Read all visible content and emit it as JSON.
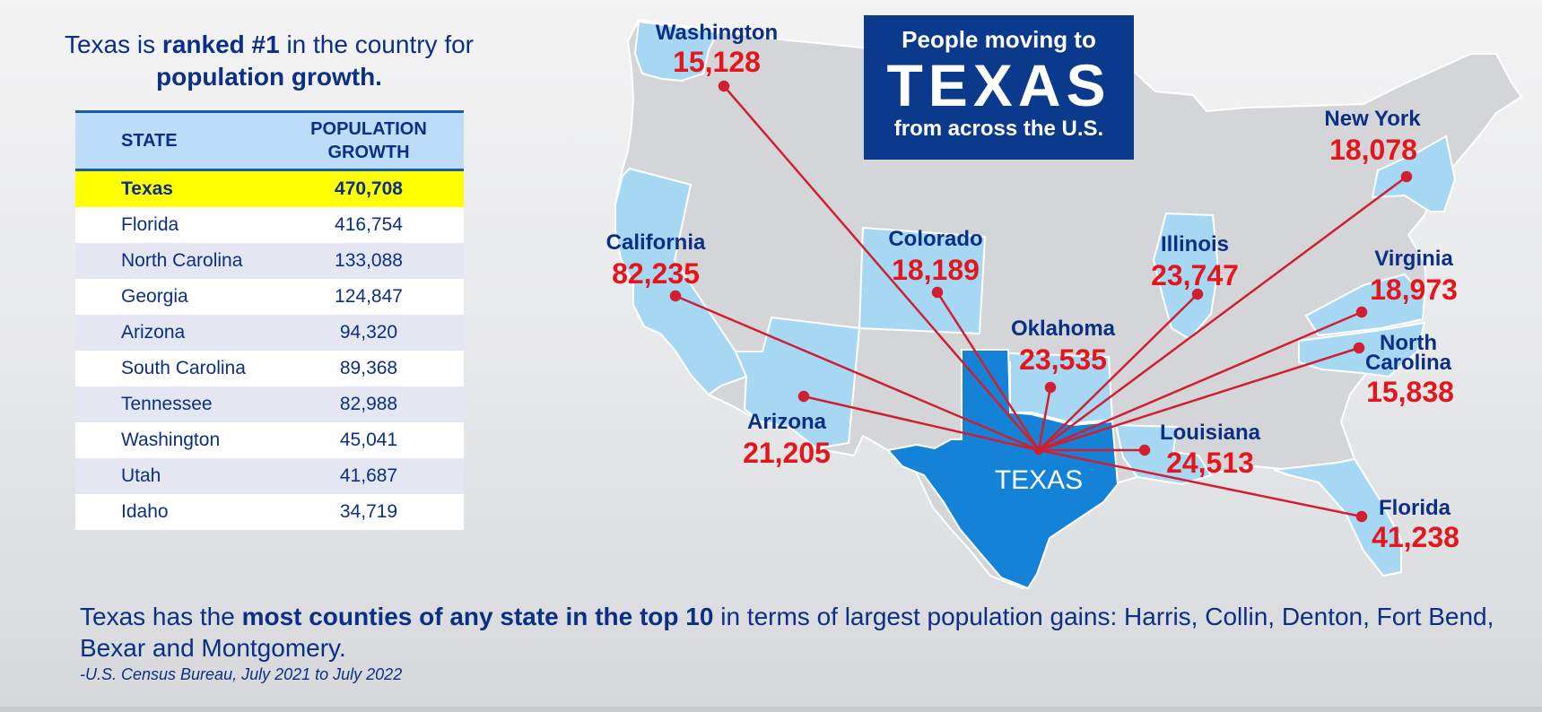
{
  "headline": {
    "part1": "Texas is ",
    "bold1": "ranked #1",
    "part2": " in the country for ",
    "bold2": "population growth."
  },
  "table": {
    "col_state": "STATE",
    "col_growth_line1": "POPULATION",
    "col_growth_line2": "GROWTH",
    "rows": [
      {
        "state": "Texas",
        "growth": "470,708"
      },
      {
        "state": "Florida",
        "growth": "416,754"
      },
      {
        "state": "North Carolina",
        "growth": "133,088"
      },
      {
        "state": "Georgia",
        "growth": "124,847"
      },
      {
        "state": "Arizona",
        "growth": "94,320"
      },
      {
        "state": "South Carolina",
        "growth": "89,368"
      },
      {
        "state": "Tennessee",
        "growth": "82,988"
      },
      {
        "state": "Washington",
        "growth": "45,041"
      },
      {
        "state": "Utah",
        "growth": "41,687"
      },
      {
        "state": "Idaho",
        "growth": "34,719"
      }
    ]
  },
  "title_box": {
    "line1": "People moving to",
    "line2": "TEXAS",
    "line3": "from across the U.S."
  },
  "map": {
    "texas_label": "TEXAS",
    "flows": [
      {
        "state": "Washington",
        "value": "15,128"
      },
      {
        "state": "California",
        "value": "82,235"
      },
      {
        "state": "Colorado",
        "value": "18,189"
      },
      {
        "state": "Arizona",
        "value": "21,205"
      },
      {
        "state": "Oklahoma",
        "value": "23,535"
      },
      {
        "state": "Illinois",
        "value": "23,747"
      },
      {
        "state": "New York",
        "value": "18,078"
      },
      {
        "state": "Virginia",
        "value": "18,973"
      },
      {
        "state": "North Carolina",
        "value": "15,838"
      },
      {
        "state": "Louisiana",
        "value": "24,513"
      },
      {
        "state": "Florida",
        "value": "41,238"
      }
    ]
  },
  "footer": {
    "part1": "Texas has the ",
    "bold": "most counties of any state in the top 10",
    "part2": " in terms of largest population gains: Harris, Collin, Denton, Fort Bend, Bexar and Montgomery."
  },
  "source": "-U.S. Census Bureau, July 2021 to July 2022",
  "colors": {
    "navy": "#0b2f84",
    "value_red": "#e4161b",
    "texas_blue": "#1482d6",
    "origin_light_blue": "#a6d8f4",
    "other_states_gray": "#d3d5d8",
    "highlight_yellow": "#ffff00"
  }
}
